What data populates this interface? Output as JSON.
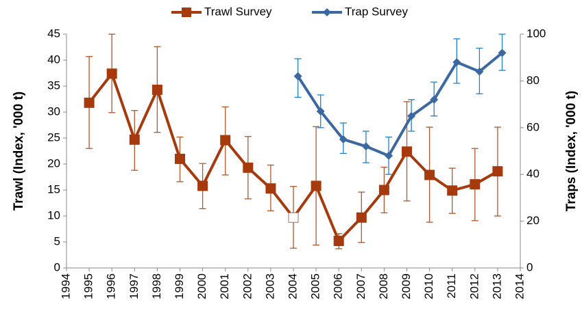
{
  "chart_data": {
    "type": "line",
    "y_label": "Trawl (Index, '000 t)",
    "y2_label": "Traps (Index, '000 t)",
    "xlim": [
      1994,
      2014
    ],
    "xticks": [
      1994,
      1995,
      1996,
      1997,
      1998,
      1999,
      2000,
      2001,
      2002,
      2003,
      2004,
      2005,
      2006,
      2007,
      2008,
      2009,
      2010,
      2011,
      2012,
      2013,
      2014
    ],
    "ylim": [
      0,
      45
    ],
    "yticks": [
      0,
      5,
      10,
      15,
      20,
      25,
      30,
      35,
      40,
      45
    ],
    "y2lim": [
      0,
      100
    ],
    "y2ticks": [
      0,
      20,
      40,
      60,
      80,
      100
    ],
    "series": [
      {
        "name": "Trawl Survey",
        "color": "#a63a0c",
        "error_color": "#b0562a",
        "marker": "square",
        "open_marker_x": [
          2004
        ],
        "x": [
          1995,
          1996,
          1997,
          1998,
          1999,
          2000,
          2001,
          2002,
          2003,
          2004,
          2005,
          2006,
          2007,
          2008,
          2009,
          2010,
          2011,
          2012,
          2013
        ],
        "values": [
          31.8,
          37.4,
          24.7,
          34.3,
          21,
          15.8,
          24.6,
          19.3,
          15.3,
          9.7,
          15.8,
          5.2,
          9.7,
          15,
          22.4,
          17.9,
          14.9,
          16.1,
          18.6
        ],
        "lower": [
          23,
          29.9,
          18.8,
          26.1,
          16.6,
          11.4,
          17.9,
          13.3,
          11,
          3.8,
          4.4,
          3.7,
          4.9,
          10.6,
          12.9,
          8.8,
          10.5,
          9.1,
          10
        ],
        "upper": [
          40.7,
          45,
          30.3,
          42.6,
          25.2,
          20.1,
          31,
          25.3,
          19.8,
          15.7,
          27.2,
          6.6,
          14.6,
          19.4,
          32,
          27.1,
          19.2,
          23,
          27.1
        ]
      },
      {
        "name": "Trap Survey",
        "color": "#3b67a3",
        "error_color": "#1f7fc9",
        "marker": "diamond",
        "axis": "y2",
        "x": [
          2004.2,
          2005.2,
          2006.2,
          2007.2,
          2008.2,
          2009.2,
          2010.2,
          2011.2,
          2012.2,
          2013.2
        ],
        "values": [
          82,
          67,
          55,
          52,
          48,
          65,
          72,
          88,
          84,
          92
        ],
        "lower": [
          73,
          60,
          49,
          45,
          40,
          58.5,
          65,
          79,
          74.5,
          84.5
        ],
        "upper": [
          89.5,
          74,
          62,
          58.5,
          56,
          72,
          79.5,
          98,
          94,
          100
        ]
      }
    ]
  }
}
